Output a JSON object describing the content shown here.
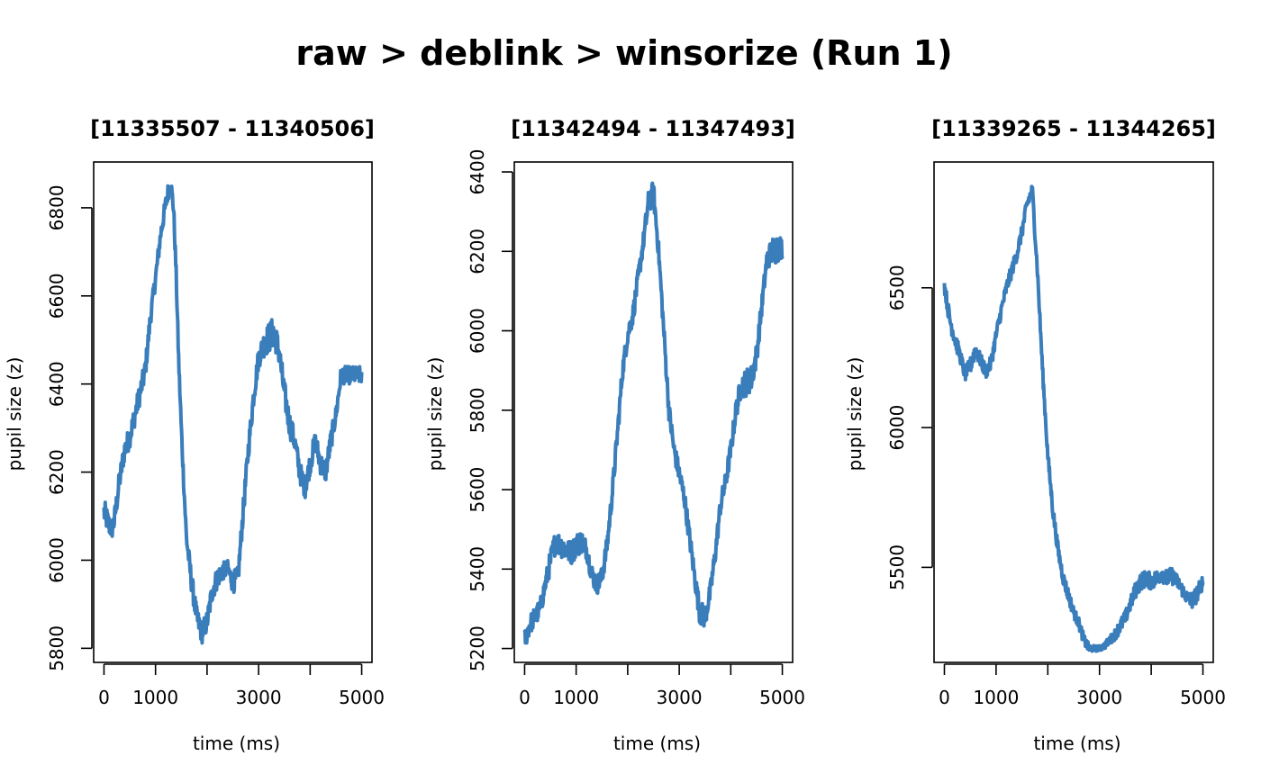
{
  "main_title": "raw > deblink > winsorize (Run 1)",
  "line_color": "#3A7DBB",
  "chart_data": [
    {
      "type": "line",
      "title": "[11335507 - 11340506]",
      "xlabel": "time (ms)",
      "ylabel": "pupil size (z)",
      "xlim": [
        -200,
        5200
      ],
      "ylim": [
        5768,
        6904
      ],
      "x_ticks": [
        0,
        1000,
        2000,
        3000,
        4000,
        5000
      ],
      "x_tick_labels": [
        "0",
        "1000",
        "",
        "3000",
        "",
        "5000"
      ],
      "y_ticks": [
        5800,
        6000,
        6200,
        6400,
        6600,
        6800
      ],
      "y_tick_labels": [
        "5800",
        "6000",
        "6200",
        "6400",
        "6600",
        "6800"
      ],
      "series": [
        {
          "x": [
            0,
            100,
            150,
            200,
            300,
            400,
            500,
            600,
            700,
            800,
            900,
            1000,
            1100,
            1200,
            1250,
            1300,
            1350,
            1400,
            1450,
            1500,
            1550,
            1600,
            1700,
            1800,
            1900,
            2000,
            2100,
            2200,
            2300,
            2400,
            2500,
            2600,
            2700,
            2800,
            2900,
            3000,
            3100,
            3200,
            3300,
            3400,
            3500,
            3600,
            3700,
            3800,
            3900,
            4000,
            4100,
            4200,
            4300,
            4400,
            4500,
            4600,
            4700,
            4800,
            4900,
            5000
          ],
          "y": [
            6110,
            6080,
            6070,
            6090,
            6180,
            6250,
            6280,
            6330,
            6380,
            6430,
            6550,
            6640,
            6740,
            6810,
            6840,
            6850,
            6800,
            6650,
            6450,
            6300,
            6170,
            6050,
            5950,
            5870,
            5835,
            5860,
            5930,
            5960,
            5975,
            5980,
            5950,
            5960,
            6110,
            6250,
            6370,
            6460,
            6490,
            6505,
            6520,
            6470,
            6380,
            6310,
            6270,
            6200,
            6165,
            6220,
            6270,
            6220,
            6200,
            6270,
            6330,
            6420,
            6420,
            6420,
            6420,
            6420
          ],
          "noise": [
            30,
            25,
            25,
            25,
            25,
            25,
            25,
            25,
            25,
            25,
            20,
            20,
            20,
            20,
            20,
            20,
            20,
            20,
            20,
            20,
            20,
            20,
            25,
            25,
            25,
            25,
            25,
            25,
            20,
            20,
            25,
            25,
            25,
            25,
            25,
            25,
            30,
            35,
            35,
            30,
            30,
            30,
            25,
            25,
            25,
            25,
            25,
            25,
            25,
            25,
            20,
            20,
            20,
            20,
            20,
            20
          ]
        }
      ]
    },
    {
      "type": "line",
      "title": "[11342494 - 11347493]",
      "xlabel": "time (ms)",
      "ylabel": "pupil size (z)",
      "xlim": [
        -200,
        5200
      ],
      "ylim": [
        5165,
        6425
      ],
      "x_ticks": [
        0,
        1000,
        2000,
        3000,
        4000,
        5000
      ],
      "x_tick_labels": [
        "0",
        "1000",
        "",
        "3000",
        "",
        "5000"
      ],
      "y_ticks": [
        5200,
        5400,
        5600,
        5800,
        6000,
        6200,
        6400
      ],
      "y_tick_labels": [
        "5200",
        "5400",
        "5600",
        "5800",
        "6000",
        "6200",
        "6400"
      ],
      "series": [
        {
          "x": [
            0,
            100,
            200,
            300,
            400,
            500,
            600,
            700,
            800,
            900,
            1000,
            1100,
            1200,
            1300,
            1400,
            1500,
            1600,
            1700,
            1800,
            1900,
            2000,
            2100,
            2200,
            2300,
            2400,
            2500,
            2600,
            2700,
            2800,
            2900,
            3000,
            3100,
            3200,
            3300,
            3400,
            3500,
            3600,
            3700,
            3800,
            3900,
            4000,
            4100,
            4200,
            4300,
            4400,
            4500,
            4600,
            4700,
            4800,
            4900,
            4950,
            5000
          ],
          "y": [
            5220,
            5260,
            5280,
            5300,
            5360,
            5420,
            5470,
            5460,
            5450,
            5440,
            5460,
            5470,
            5450,
            5390,
            5360,
            5380,
            5460,
            5590,
            5740,
            5900,
            5990,
            6040,
            6130,
            6220,
            6320,
            6350,
            6200,
            6000,
            5800,
            5700,
            5640,
            5580,
            5480,
            5380,
            5290,
            5280,
            5340,
            5440,
            5560,
            5620,
            5700,
            5800,
            5860,
            5870,
            5880,
            5940,
            6060,
            6180,
            6200,
            6210,
            6210,
            6210
          ],
          "noise": [
            25,
            25,
            25,
            25,
            25,
            30,
            30,
            30,
            30,
            30,
            30,
            30,
            25,
            25,
            25,
            25,
            25,
            25,
            25,
            25,
            25,
            25,
            25,
            25,
            30,
            30,
            25,
            25,
            25,
            25,
            25,
            25,
            25,
            25,
            30,
            30,
            25,
            25,
            25,
            25,
            25,
            25,
            30,
            35,
            35,
            30,
            25,
            25,
            35,
            40,
            30,
            30
          ]
        }
      ]
    },
    {
      "type": "line",
      "title": "[11339265 - 11344265]",
      "xlabel": "time (ms)",
      "ylabel": "pupil size (z)",
      "xlim": [
        -200,
        5200
      ],
      "ylim": [
        5160,
        6950
      ],
      "x_ticks": [
        0,
        1000,
        2000,
        3000,
        4000,
        5000
      ],
      "x_tick_labels": [
        "0",
        "1000",
        "",
        "3000",
        "",
        "5000"
      ],
      "y_ticks": [
        5500,
        6000,
        6500
      ],
      "y_tick_labels": [
        "5500",
        "6000",
        "6500"
      ],
      "series": [
        {
          "x": [
            0,
            100,
            200,
            300,
            400,
            500,
            600,
            700,
            800,
            900,
            1000,
            1100,
            1200,
            1300,
            1400,
            1500,
            1600,
            1700,
            1800,
            1900,
            2000,
            2100,
            2200,
            2300,
            2400,
            2500,
            2600,
            2700,
            2800,
            2900,
            3000,
            3100,
            3200,
            3300,
            3400,
            3500,
            3600,
            3700,
            3800,
            3900,
            4000,
            4100,
            4200,
            4300,
            4400,
            4500,
            4600,
            4700,
            4800,
            4900,
            5000
          ],
          "y": [
            6510,
            6390,
            6320,
            6260,
            6190,
            6220,
            6280,
            6240,
            6200,
            6230,
            6330,
            6420,
            6500,
            6560,
            6620,
            6700,
            6800,
            6850,
            6560,
            6200,
            5900,
            5700,
            5560,
            5460,
            5400,
            5340,
            5300,
            5240,
            5210,
            5210,
            5210,
            5220,
            5240,
            5260,
            5290,
            5320,
            5370,
            5420,
            5450,
            5460,
            5450,
            5460,
            5480,
            5460,
            5470,
            5450,
            5420,
            5390,
            5380,
            5410,
            5450
          ],
          "noise": [
            25,
            30,
            30,
            25,
            25,
            30,
            30,
            25,
            25,
            25,
            25,
            25,
            25,
            25,
            25,
            25,
            25,
            25,
            25,
            25,
            25,
            25,
            25,
            25,
            25,
            20,
            20,
            20,
            15,
            10,
            10,
            12,
            15,
            20,
            25,
            25,
            25,
            30,
            30,
            30,
            30,
            30,
            30,
            30,
            30,
            25,
            25,
            25,
            30,
            30,
            25
          ]
        }
      ]
    }
  ]
}
